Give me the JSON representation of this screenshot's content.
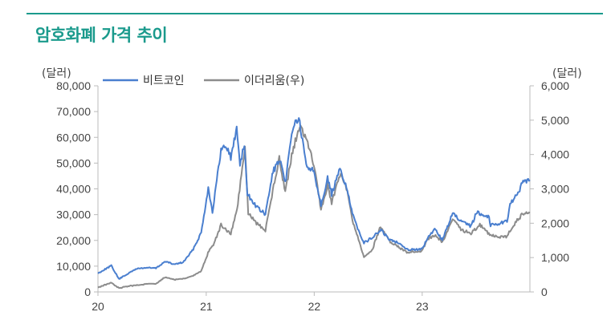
{
  "title": "암호화폐 가격 추이",
  "colors": {
    "title": "#1a9a8c",
    "rule": "#1a9a8c",
    "btc": "#4a7fcf",
    "eth": "#8c8c8c",
    "axis": "#bbbbbb"
  },
  "chart_data": {
    "type": "line",
    "left_unit": "(달러)",
    "right_unit": "(달러)",
    "x_range": [
      "2020-01-01",
      "2023-12-31"
    ],
    "x_ticks": [
      {
        "date": "2020-01-01",
        "label": "20"
      },
      {
        "date": "2021-01-01",
        "label": "21"
      },
      {
        "date": "2022-01-01",
        "label": "22"
      },
      {
        "date": "2023-01-01",
        "label": "23"
      }
    ],
    "y_left": {
      "min": 0,
      "max": 80000,
      "ticks": [
        "0",
        "10,000",
        "20,000",
        "30,000",
        "40,000",
        "50,000",
        "60,000",
        "70,000",
        "80,000"
      ]
    },
    "y_right": {
      "min": 0,
      "max": 6000,
      "ticks": [
        "0",
        "1,000",
        "2,000",
        "3,000",
        "4,000",
        "5,000",
        "6,000"
      ]
    },
    "legend": {
      "placement": "top-left"
    },
    "series": [
      {
        "name": "비트코인",
        "axis": "left",
        "color": "#4a7fcf",
        "points": [
          [
            "2020-01-01",
            7200
          ],
          [
            "2020-02-15",
            10200
          ],
          [
            "2020-03-12",
            5000
          ],
          [
            "2020-04-10",
            7000
          ],
          [
            "2020-05-10",
            9000
          ],
          [
            "2020-06-15",
            9400
          ],
          [
            "2020-07-15",
            9200
          ],
          [
            "2020-08-15",
            11800
          ],
          [
            "2020-09-15",
            10700
          ],
          [
            "2020-10-15",
            11500
          ],
          [
            "2020-11-15",
            16000
          ],
          [
            "2020-12-15",
            23000
          ],
          [
            "2021-01-08",
            40500
          ],
          [
            "2021-01-22",
            31000
          ],
          [
            "2021-02-20",
            55000
          ],
          [
            "2021-03-10",
            57000
          ],
          [
            "2021-03-25",
            52000
          ],
          [
            "2021-04-14",
            63500
          ],
          [
            "2021-04-25",
            50000
          ],
          [
            "2021-05-10",
            57000
          ],
          [
            "2021-05-20",
            38000
          ],
          [
            "2021-06-20",
            33000
          ],
          [
            "2021-07-20",
            30000
          ],
          [
            "2021-08-15",
            47000
          ],
          [
            "2021-09-07",
            51000
          ],
          [
            "2021-09-25",
            42000
          ],
          [
            "2021-10-20",
            64000
          ],
          [
            "2021-11-10",
            67500
          ],
          [
            "2021-12-05",
            49000
          ],
          [
            "2021-12-31",
            47000
          ],
          [
            "2022-01-24",
            34000
          ],
          [
            "2022-02-15",
            44000
          ],
          [
            "2022-03-01",
            38000
          ],
          [
            "2022-03-29",
            47500
          ],
          [
            "2022-04-20",
            41000
          ],
          [
            "2022-05-10",
            30000
          ],
          [
            "2022-06-18",
            19000
          ],
          [
            "2022-07-15",
            21000
          ],
          [
            "2022-08-15",
            24000
          ],
          [
            "2022-09-15",
            20000
          ],
          [
            "2022-10-15",
            19200
          ],
          [
            "2022-11-10",
            16500
          ],
          [
            "2022-12-31",
            16500
          ],
          [
            "2023-01-20",
            21000
          ],
          [
            "2023-02-15",
            24500
          ],
          [
            "2023-03-10",
            20000
          ],
          [
            "2023-04-14",
            30500
          ],
          [
            "2023-05-15",
            27000
          ],
          [
            "2023-06-15",
            25500
          ],
          [
            "2023-07-05",
            31000
          ],
          [
            "2023-08-15",
            29000
          ],
          [
            "2023-08-20",
            26000
          ],
          [
            "2023-09-15",
            26500
          ],
          [
            "2023-10-15",
            27500
          ],
          [
            "2023-10-25",
            34500
          ],
          [
            "2023-11-15",
            37000
          ],
          [
            "2023-12-05",
            42000
          ],
          [
            "2023-12-31",
            43500
          ]
        ]
      },
      {
        "name": "이더리움(우)",
        "axis": "right",
        "color": "#8c8c8c",
        "points": [
          [
            "2020-01-01",
            130
          ],
          [
            "2020-02-15",
            270
          ],
          [
            "2020-03-12",
            110
          ],
          [
            "2020-04-15",
            170
          ],
          [
            "2020-05-15",
            200
          ],
          [
            "2020-06-15",
            230
          ],
          [
            "2020-07-15",
            240
          ],
          [
            "2020-08-15",
            430
          ],
          [
            "2020-09-15",
            360
          ],
          [
            "2020-10-15",
            380
          ],
          [
            "2020-11-15",
            460
          ],
          [
            "2020-12-15",
            600
          ],
          [
            "2021-01-10",
            1200
          ],
          [
            "2021-01-25",
            1350
          ],
          [
            "2021-02-20",
            1950
          ],
          [
            "2021-03-10",
            1800
          ],
          [
            "2021-03-25",
            1700
          ],
          [
            "2021-04-15",
            2400
          ],
          [
            "2021-05-12",
            4200
          ],
          [
            "2021-05-23",
            2300
          ],
          [
            "2021-06-20",
            2000
          ],
          [
            "2021-07-20",
            1800
          ],
          [
            "2021-08-20",
            3200
          ],
          [
            "2021-09-05",
            3900
          ],
          [
            "2021-09-25",
            2900
          ],
          [
            "2021-10-20",
            4100
          ],
          [
            "2021-11-10",
            4800
          ],
          [
            "2021-12-01",
            4600
          ],
          [
            "2021-12-31",
            3700
          ],
          [
            "2022-01-24",
            2400
          ],
          [
            "2022-02-15",
            3100
          ],
          [
            "2022-03-01",
            2600
          ],
          [
            "2022-04-01",
            3450
          ],
          [
            "2022-04-20",
            3000
          ],
          [
            "2022-05-10",
            2100
          ],
          [
            "2022-06-18",
            1000
          ],
          [
            "2022-07-15",
            1200
          ],
          [
            "2022-08-13",
            1900
          ],
          [
            "2022-09-15",
            1450
          ],
          [
            "2022-10-15",
            1300
          ],
          [
            "2022-11-10",
            1150
          ],
          [
            "2022-12-31",
            1200
          ],
          [
            "2023-01-20",
            1550
          ],
          [
            "2023-02-15",
            1650
          ],
          [
            "2023-03-10",
            1450
          ],
          [
            "2023-04-14",
            2100
          ],
          [
            "2023-05-15",
            1800
          ],
          [
            "2023-06-15",
            1700
          ],
          [
            "2023-07-15",
            1950
          ],
          [
            "2023-08-20",
            1650
          ],
          [
            "2023-09-15",
            1600
          ],
          [
            "2023-10-15",
            1600
          ],
          [
            "2023-10-25",
            1800
          ],
          [
            "2023-11-15",
            2050
          ],
          [
            "2023-12-10",
            2300
          ],
          [
            "2023-12-31",
            2300
          ]
        ]
      }
    ]
  }
}
